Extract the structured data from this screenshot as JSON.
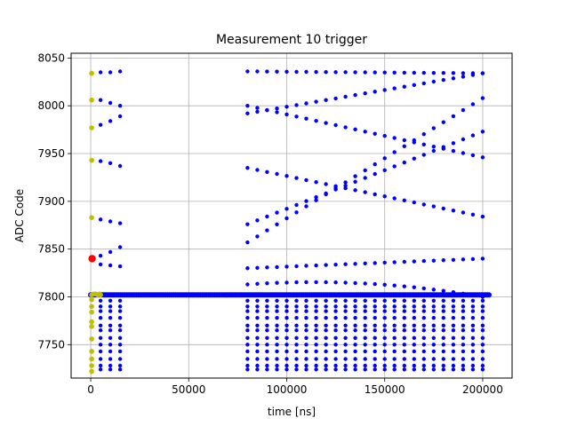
{
  "chart_data": {
    "type": "scatter",
    "title": "Measurement 10 trigger",
    "xlabel": "time [ns]",
    "ylabel": "ADC Code",
    "xlim": [
      -10000,
      215000
    ],
    "ylim": [
      7715,
      8055
    ],
    "xticks": [
      0,
      50000,
      100000,
      150000,
      200000
    ],
    "yticks": [
      7750,
      7800,
      7850,
      7900,
      7950,
      8000,
      8050
    ],
    "grid": true,
    "colors": {
      "blue": "#0000ff",
      "olive": "#bfbf00",
      "red": "#ff0000"
    },
    "baseline": {
      "y": 7802,
      "x_start": 0,
      "x_end": 203500,
      "x_step": 800
    },
    "columns": {
      "x_left": [
        5000,
        10000,
        15000
      ],
      "x_right_start": 80000,
      "x_right_step": 5000,
      "x_right_end": 200000
    },
    "lower_levels": [
      7796,
      7790,
      7785,
      7778,
      7770,
      7765,
      7757,
      7750,
      7743,
      7735,
      7728,
      7724
    ],
    "left_trajectories": [
      {
        "x": [
          5000,
          10000,
          15000
        ],
        "y": [
          8035,
          8035,
          8036
        ]
      },
      {
        "x": [
          5000,
          10000,
          15000
        ],
        "y": [
          8006,
          8003,
          8000
        ]
      },
      {
        "x": [
          5000,
          10000,
          15000
        ],
        "y": [
          7980,
          7984,
          7989
        ]
      },
      {
        "x": [
          5000,
          10000,
          15000
        ],
        "y": [
          7942,
          7940,
          7937
        ]
      },
      {
        "x": [
          5000,
          10000,
          15000
        ],
        "y": [
          7881,
          7879,
          7877
        ]
      },
      {
        "x": [
          5000,
          10000,
          15000
        ],
        "y": [
          7843,
          7847,
          7852
        ]
      },
      {
        "x": [
          5000,
          10000,
          15000
        ],
        "y": [
          7834,
          7833,
          7832
        ]
      }
    ],
    "right_trajectories": [
      {
        "y0": 8036,
        "y1": 8034
      },
      {
        "y0": 8000,
        "y1": 7946
      },
      {
        "y0": 7992,
        "y1": 8034
      },
      {
        "y0": 7935,
        "y1": 7884
      },
      {
        "y0": 7876,
        "y1": 7973
      },
      {
        "y0": 7857,
        "y1": 8008
      },
      {
        "y0": 7830,
        "y1": 7840
      },
      {
        "y0": 7813,
        "y1": 7800,
        "peak": 7814
      }
    ],
    "olive_points": {
      "x": [
        500,
        500,
        500,
        500,
        500,
        500,
        500,
        500,
        500,
        500,
        500,
        500,
        500,
        500,
        500,
        500,
        1500,
        2500,
        3500,
        4500,
        5000
      ],
      "y": [
        8034,
        8006,
        7977,
        7943,
        7883,
        7802,
        7797,
        7790,
        7784,
        7774,
        7769,
        7756,
        7743,
        7735,
        7728,
        7722,
        7803,
        7803,
        7802,
        7803,
        7802
      ]
    },
    "red_points": {
      "x": [
        700
      ],
      "y": [
        7840
      ]
    }
  }
}
